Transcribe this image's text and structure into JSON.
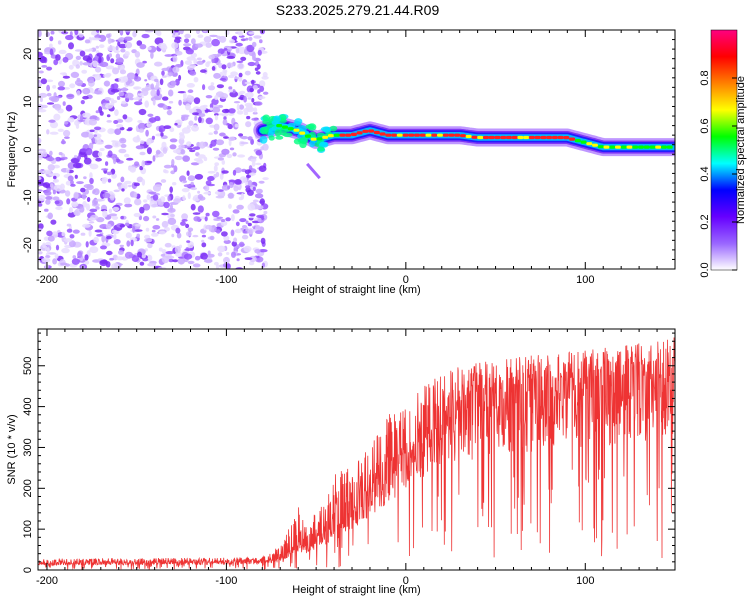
{
  "title": "S233.2025.279.21.44.R09",
  "chart_data": [
    {
      "type": "heatmap",
      "name": "spectrogram",
      "xlabel": "Height of straight line (km)",
      "ylabel": "Frequency (Hz)",
      "xlim": [
        -205,
        150
      ],
      "ylim": [
        -25,
        25
      ],
      "xticks": [
        -200,
        -100,
        0,
        100
      ],
      "yticks": [
        -20,
        -10,
        0,
        10,
        20
      ],
      "noise_region_x": [
        -205,
        -78
      ],
      "signal_trace": {
        "x": [
          -80,
          -70,
          -60,
          -50,
          -40,
          -30,
          -20,
          -10,
          0,
          10,
          20,
          30,
          40,
          50,
          60,
          70,
          80,
          90,
          100,
          110,
          120,
          130,
          140,
          150
        ],
        "frequency_hz": [
          4,
          5,
          4,
          2,
          3,
          3,
          4,
          3,
          3,
          3,
          3,
          3,
          2.5,
          2.5,
          2.5,
          2.5,
          2.5,
          2.5,
          1.5,
          0.5,
          0.5,
          0.5,
          0.5,
          0.5
        ]
      }
    },
    {
      "type": "colorbar",
      "name": "amplitude-colorbar",
      "label": "Normalized spectral amplitude",
      "range": [
        0,
        1
      ],
      "ticks": [
        "0.0",
        "0.2",
        "0.4",
        "0.6",
        "0.8"
      ],
      "colors": [
        "#ffffff",
        "#9966ff",
        "#6600ff",
        "#0000ff",
        "#00ffff",
        "#00ff00",
        "#ffff00",
        "#ff8000",
        "#ff0000",
        "#ff0080"
      ]
    },
    {
      "type": "line",
      "name": "snr",
      "xlabel": "Height of straight line (km)",
      "ylabel": "SNR (10 * v/v)",
      "xlim": [
        -205,
        150
      ],
      "ylim": [
        0,
        590
      ],
      "xticks": [
        -200,
        -100,
        0,
        100
      ],
      "yticks": [
        0,
        100,
        200,
        300,
        400,
        500
      ],
      "color": "#ee3333",
      "envelope": {
        "x": [
          -205,
          -100,
          -80,
          -70,
          -60,
          -55,
          -50,
          -40,
          -30,
          -20,
          -10,
          0,
          10,
          20,
          30,
          40,
          60,
          80,
          100,
          120,
          150
        ],
        "mean": [
          18,
          20,
          22,
          30,
          70,
          60,
          80,
          110,
          150,
          200,
          250,
          300,
          350,
          380,
          400,
          420,
          440,
          450,
          460,
          470,
          480
        ],
        "peak": [
          28,
          30,
          32,
          60,
          160,
          100,
          150,
          250,
          260,
          300,
          380,
          400,
          450,
          480,
          500,
          510,
          520,
          530,
          540,
          550,
          570
        ]
      }
    }
  ]
}
